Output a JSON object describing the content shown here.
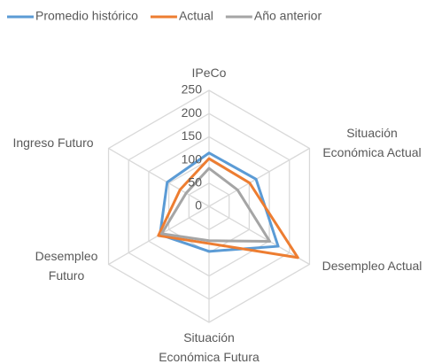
{
  "chart_data": {
    "type": "radar",
    "categories": [
      [
        "IPeCo"
      ],
      [
        "Situación",
        "Económica Actual"
      ],
      [
        "Desempleo Actual"
      ],
      [
        "Situación",
        "Económica Futura"
      ],
      [
        "Desempleo",
        "Futuro"
      ],
      [
        "Ingreso Futuro"
      ]
    ],
    "series": [
      {
        "name": "Promedio histórico",
        "color": "#5b9bd5",
        "values": [
          115,
          117,
          172,
          97,
          122,
          104
        ]
      },
      {
        "name": "Actual",
        "color": "#ed7d31",
        "values": [
          103,
          101,
          221,
          80,
          126,
          72
        ]
      },
      {
        "name": "Año anterior",
        "color": "#a5a5a5",
        "values": [
          82,
          71,
          151,
          74,
          118,
          57
        ]
      }
    ],
    "ylim": [
      0,
      250
    ],
    "yticks": [
      0,
      50,
      100,
      150,
      200,
      250
    ],
    "grid": true,
    "legend": "top"
  }
}
